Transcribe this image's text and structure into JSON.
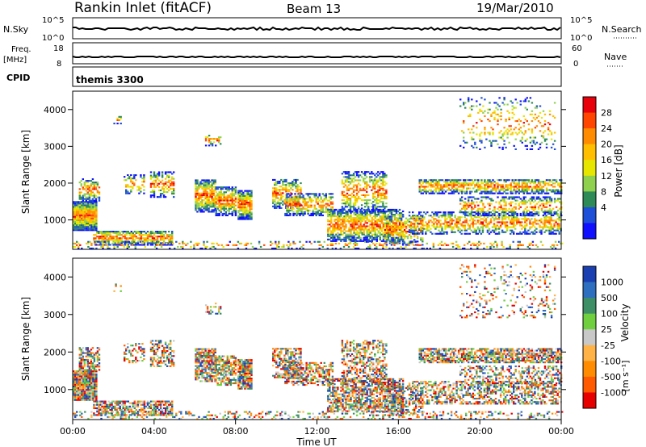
{
  "header": {
    "station": "Rankin Inlet (fitACF)",
    "beam": "Beam 13",
    "date": "19/Mar/2010"
  },
  "strip_labels": {
    "nsky": "N.Sky",
    "nsky_ticks": [
      "10^5",
      "10^0"
    ],
    "nsearch": "N.Search",
    "nsearch_ticks": [
      "10^5",
      "10^0"
    ],
    "freq": "Freq.",
    "freq_unit": "[MHz]",
    "freq_ticks": [
      "18",
      "8"
    ],
    "nave": "Nave",
    "nave_ticks": [
      "60",
      "0"
    ],
    "cpid": "CPID",
    "cpid_value": "themis 3300"
  },
  "chart_data": [
    {
      "type": "heatmap",
      "name": "power",
      "ylabel": "Slant Range [km]",
      "xlabel": "Time UT",
      "xticks": [
        "00:00",
        "04:00",
        "08:00",
        "12:00",
        "16:00",
        "20:00",
        "00:00"
      ],
      "xlim": [
        0,
        24
      ],
      "ylim": [
        200,
        4500
      ],
      "yticks": [
        1000,
        2000,
        3000,
        4000
      ],
      "colorbar": {
        "label": "Power [dB]",
        "ticks": [
          "28",
          "24",
          "20",
          "16",
          "12",
          "8",
          "4"
        ],
        "colors": [
          "#e8000b",
          "#ff4500",
          "#ff8c00",
          "#ffbf00",
          "#e6e600",
          "#8fd14f",
          "#2e8b57",
          "#1e4fd8",
          "#1010ff"
        ]
      }
    },
    {
      "type": "heatmap",
      "name": "velocity",
      "ylabel": "Slant Range [km]",
      "xlabel": "Time UT",
      "xticks": [
        "00:00",
        "04:00",
        "08:00",
        "12:00",
        "16:00",
        "20:00",
        "00:00"
      ],
      "xlim": [
        0,
        24
      ],
      "ylim": [
        200,
        4500
      ],
      "yticks": [
        1000,
        2000,
        3000,
        4000
      ],
      "colorbar": {
        "label": "Velocity",
        "unit": "[m s⁻¹]",
        "ticks": [
          "1000",
          "500",
          "100",
          "25",
          "-25",
          "-100",
          "-500",
          "-1000"
        ],
        "colors": [
          "#1a3fb0",
          "#2f6fbf",
          "#3e8e66",
          "#6fcf3f",
          "#c8c8c8",
          "#ffb347",
          "#ff8c00",
          "#ff5a00",
          "#e60000"
        ]
      }
    }
  ],
  "x_axis": {
    "label": "Time UT",
    "ticks": [
      "00:00",
      "04:00",
      "08:00",
      "12:00",
      "16:00",
      "20:00",
      "00:00"
    ]
  }
}
